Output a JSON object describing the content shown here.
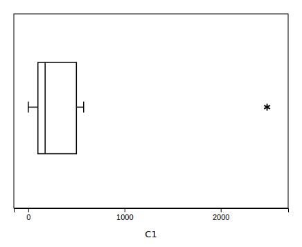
{
  "chart_data": {
    "type": "box",
    "orientation": "horizontal",
    "xlabel": "C1",
    "q1": 100,
    "median": 175,
    "q3": 500,
    "whisker_low": 0,
    "whisker_high": 575,
    "outliers": [
      2481
    ],
    "xlim": [
      -150,
      2700
    ],
    "xticks": [
      0,
      1000,
      2000
    ],
    "color": "black",
    "tick_labels": "x",
    "grid": false
  }
}
